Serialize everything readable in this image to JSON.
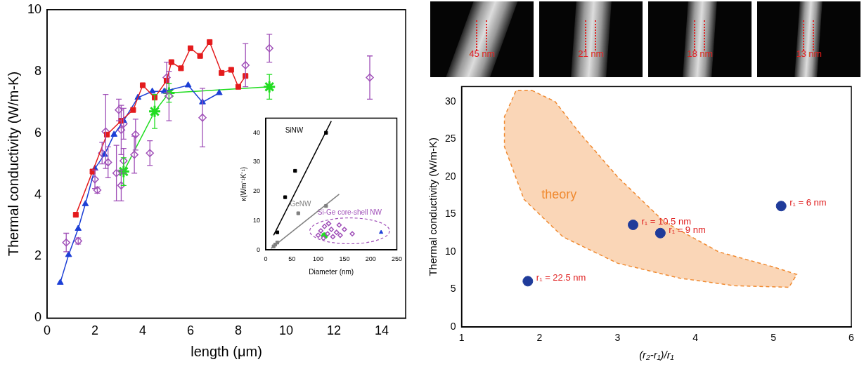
{
  "chart_data": [
    {
      "type": "scatter",
      "x_label": "length (μm)",
      "y_label": "Thermal conductivity (W/m-K)",
      "xlim": [
        0,
        15
      ],
      "xticks": [
        0,
        2,
        4,
        6,
        8,
        10,
        12,
        14
      ],
      "ylim": [
        0,
        10
      ],
      "yticks": [
        0,
        2,
        4,
        6,
        8,
        10
      ],
      "grid": false,
      "series": [
        {
          "color": "#e41a1c",
          "marker": "square",
          "line_style": "solid",
          "x": [
            1.2,
            1.9,
            2.5,
            3.1,
            3.6,
            4.0,
            4.5,
            5.0,
            5.2,
            5.6,
            6.0,
            6.4,
            6.8,
            7.3,
            7.7,
            8.0,
            8.3
          ],
          "y": [
            3.35,
            4.75,
            5.95,
            6.4,
            6.75,
            7.55,
            7.15,
            7.7,
            8.3,
            8.1,
            8.75,
            8.5,
            8.95,
            7.95,
            8.05,
            7.5,
            7.85
          ]
        },
        {
          "color": "#1c3fd6",
          "marker": "triangle",
          "line_style": "solid",
          "x": [
            0.55,
            0.9,
            1.3,
            1.6,
            2.0,
            2.4,
            2.8,
            3.2,
            3.8,
            4.4,
            4.9,
            5.9,
            6.5,
            7.2
          ],
          "y": [
            1.15,
            2.05,
            2.9,
            3.7,
            4.85,
            5.3,
            5.95,
            6.4,
            7.15,
            7.35,
            7.35,
            7.55,
            7.0,
            7.3
          ]
        },
        {
          "color": "#a050b8",
          "marker": "diamond-open",
          "line_style": "none",
          "x": [
            0.8,
            1.3,
            2.0,
            2.1,
            2.3,
            2.45,
            2.55,
            2.9,
            3.0,
            3.1,
            3.1,
            3.2,
            3.2,
            3.65,
            3.7,
            4.3,
            5.0,
            5.1,
            6.5,
            8.3,
            9.3,
            13.5
          ],
          "y": [
            2.45,
            2.5,
            4.5,
            4.15,
            5.35,
            6.05,
            5.05,
            4.7,
            6.75,
            4.3,
            6.1,
            5.1,
            6.3,
            5.3,
            5.95,
            5.35,
            7.8,
            7.2,
            6.5,
            8.2,
            8.75,
            7.8
          ],
          "y_error": [
            0.3,
            0.1,
            0.3,
            0.1,
            0.35,
            1.2,
            0.5,
            0.9,
            0.35,
            0.5,
            0.8,
            0.4,
            0.5,
            0.6,
            0.5,
            0.4,
            0.5,
            0.8,
            0.95,
            0.7,
            0.45,
            0.7
          ]
        },
        {
          "color": "#22dd22",
          "marker": "star",
          "line_style": "solid",
          "x": [
            3.2,
            4.5,
            5.1,
            9.3
          ],
          "y": [
            4.75,
            6.7,
            7.3,
            7.5
          ],
          "y_error": [
            0.45,
            0.55,
            0.3,
            0.4
          ]
        }
      ]
    },
    {
      "type": "scatter",
      "x_label": "Diameter (nm)",
      "y_label": "κ(Wm⁻¹K⁻¹)",
      "xlim": [
        0,
        250
      ],
      "xticks": [
        0,
        50,
        100,
        150,
        200,
        250
      ],
      "ylim": [
        0,
        45
      ],
      "yticks": [
        0,
        10,
        20,
        30,
        40
      ],
      "grid": false,
      "series": [
        {
          "name": "SiNW",
          "color": "#000000",
          "marker": "square",
          "line_style": "none",
          "x": [
            22,
            37,
            56,
            115
          ],
          "y": [
            6,
            18,
            27,
            40
          ],
          "trend_line": {
            "x": [
              15,
              125
            ],
            "y": [
              5,
              44
            ]
          }
        },
        {
          "name": "GeNW",
          "color": "#808080",
          "marker": "square",
          "line_style": "none",
          "x": [
            15,
            18,
            22,
            62,
            115
          ],
          "y": [
            1.2,
            1.8,
            2.5,
            12.5,
            15
          ],
          "trend_line": {
            "x": [
              10,
              140
            ],
            "y": [
              0.5,
              19
            ]
          }
        },
        {
          "name": "Si-Ge core-shell NW",
          "color": "#a050b8",
          "marker": "diamond-open",
          "line_style": "none",
          "x": [
            100,
            105,
            110,
            112,
            118,
            120,
            125,
            128,
            135,
            140,
            142,
            150,
            165
          ],
          "y": [
            5,
            6.5,
            4,
            8,
            5.5,
            9,
            7,
            4.5,
            6,
            8.5,
            5,
            7,
            5.5
          ]
        },
        {
          "color": "#22dd22",
          "marker": "star",
          "line_style": "none",
          "x": [
            112
          ],
          "y": [
            4.8
          ]
        },
        {
          "color": "#1c3fd6",
          "marker": "triangle",
          "line_style": "none",
          "x": [
            220
          ],
          "y": [
            6
          ]
        }
      ]
    },
    {
      "type": "scatter",
      "x_label": "(r₂-r₁)/r₁",
      "y_label": "Thermal conductivity (W/m-K)",
      "xlim": [
        1,
        6
      ],
      "xticks": [
        1,
        2,
        3,
        4,
        5,
        6
      ],
      "ylim": [
        0,
        32
      ],
      "yticks": [
        0,
        5,
        10,
        15,
        20,
        25,
        30
      ],
      "grid": false,
      "regions": [
        {
          "label": "theory",
          "color": "#f08a30",
          "x": [
            1.9,
            2.2,
            2.5,
            3.0,
            3.6,
            4.3,
            5.0,
            5.3,
            5.2,
            4.5,
            3.8,
            3.0,
            2.3,
            1.8,
            1.55,
            1.55,
            1.7
          ],
          "y": [
            31.5,
            30,
            26,
            20,
            14,
            10,
            8,
            7,
            5.3,
            5.5,
            6.5,
            8.5,
            12,
            17,
            24,
            28,
            31.5
          ]
        }
      ],
      "series": [
        {
          "color": "#1f3b9a",
          "marker": "circle",
          "line_style": "none",
          "x": [
            1.85,
            3.2,
            3.55,
            5.1
          ],
          "y": [
            6.1,
            13.6,
            12.5,
            16.1
          ],
          "point_labels": [
            "r₁ = 22.5 nm",
            "r₁ = 10.5 nm",
            "r₁ = 9 nm",
            "r₁ = 6 nm"
          ]
        }
      ]
    }
  ],
  "micrographs": [
    {
      "scale_label": "45 nm"
    },
    {
      "scale_label": "21 nm"
    },
    {
      "scale_label": "18 nm"
    },
    {
      "scale_label": "13 nm"
    }
  ]
}
